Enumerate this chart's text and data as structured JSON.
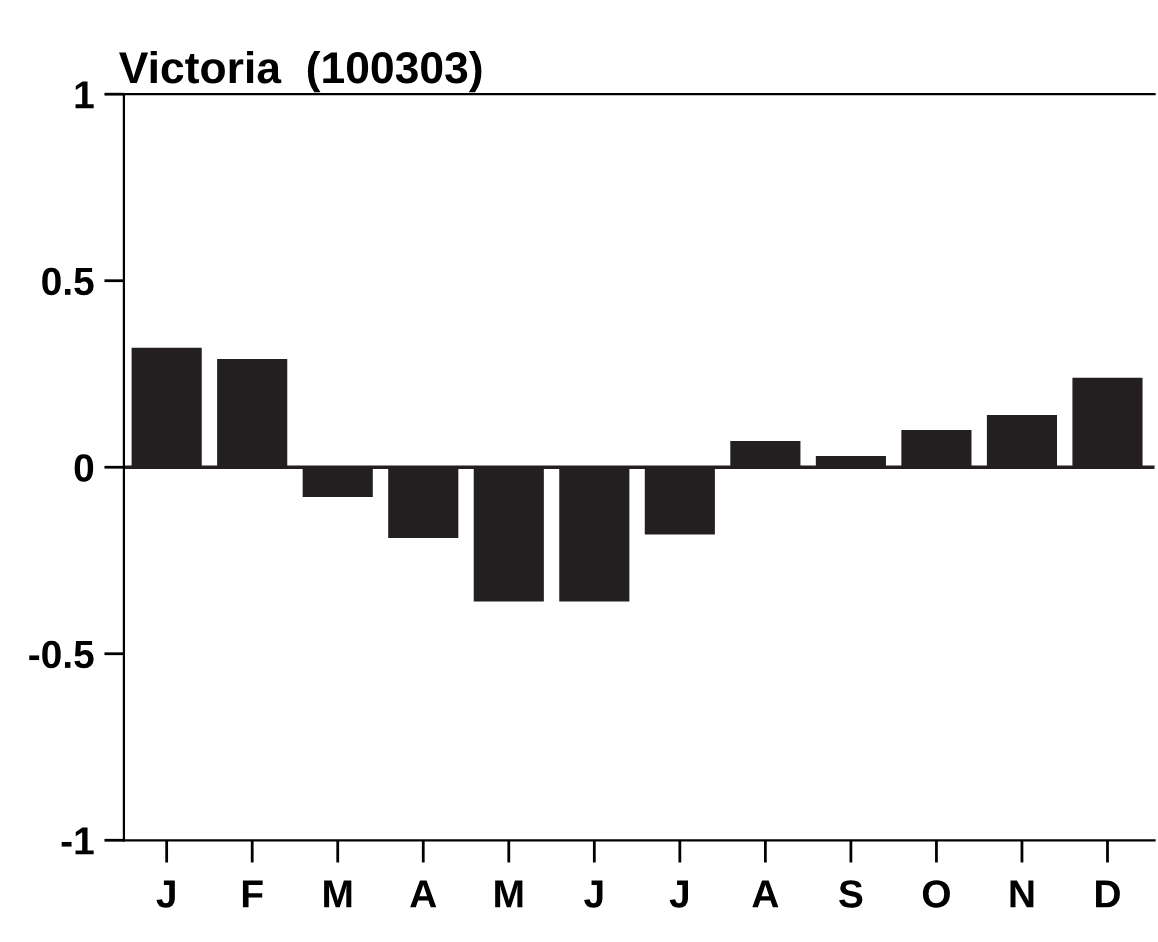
{
  "chart_data": {
    "type": "bar",
    "title": "Victoria  (100303)",
    "categories": [
      "J",
      "F",
      "M",
      "A",
      "M",
      "J",
      "J",
      "A",
      "S",
      "O",
      "N",
      "D"
    ],
    "values": [
      0.32,
      0.29,
      -0.08,
      -0.19,
      -0.36,
      -0.36,
      -0.18,
      0.07,
      0.03,
      0.1,
      0.14,
      0.24
    ],
    "color": "#231f20",
    "ylim": [
      -1,
      1
    ],
    "yticks": [
      -1,
      -0.5,
      0,
      0.5,
      1
    ],
    "grid": false,
    "ref_lines": [
      {
        "axis": "y",
        "value": 0,
        "color": "#231f20"
      }
    ]
  }
}
